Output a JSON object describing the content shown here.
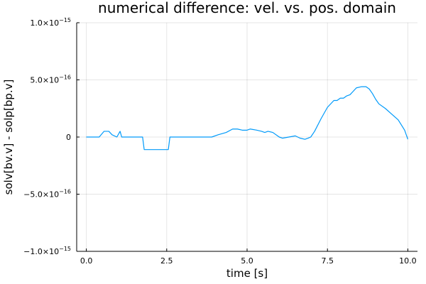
{
  "chart_data": {
    "type": "line",
    "title": "numerical difference: vel. vs. pos. domain",
    "xlabel": "time [s]",
    "ylabel": "solv[bv.v] - solp[bp.v]",
    "xlim": [
      -0.3,
      10.3
    ],
    "ylim": [
      -1e-15,
      1e-15
    ],
    "xticks": [
      0.0,
      2.5,
      5.0,
      7.5,
      10.0
    ],
    "xtick_labels": [
      "0.0",
      "2.5",
      "5.0",
      "7.5",
      "10.0"
    ],
    "yticks": [
      -1e-15,
      -5e-16,
      0,
      5e-16,
      1e-15
    ],
    "ytick_labels": [
      {
        "mantissa": "−1.0×10",
        "exp": "−15"
      },
      {
        "mantissa": "−5.0×10",
        "exp": "−16"
      },
      {
        "mantissa": "0",
        "exp": ""
      },
      {
        "mantissa": "5.0×10",
        "exp": "−16"
      },
      {
        "mantissa": "1.0×10",
        "exp": "−15"
      }
    ],
    "grid": true,
    "legend": "none",
    "series": [
      {
        "color": "#009AFA",
        "x": [
          0.0,
          0.4,
          0.55,
          0.7,
          0.8,
          0.95,
          1.05,
          1.1,
          1.2,
          1.75,
          1.8,
          2.55,
          2.6,
          3.9,
          4.1,
          4.35,
          4.55,
          4.7,
          4.85,
          5.0,
          5.1,
          5.3,
          5.45,
          5.55,
          5.65,
          5.8,
          6.0,
          6.1,
          6.3,
          6.5,
          6.65,
          6.8,
          6.9,
          6.98,
          7.1,
          7.3,
          7.5,
          7.7,
          7.8,
          7.9,
          8.0,
          8.1,
          8.2,
          8.3,
          8.4,
          8.55,
          8.7,
          8.8,
          8.9,
          9.0,
          9.1,
          9.3,
          9.5,
          9.7,
          9.9,
          10.0
        ],
        "y": [
          0,
          0,
          5e-17,
          5e-17,
          2e-17,
          0,
          5e-17,
          0,
          0,
          0,
          -1.1e-16,
          -1.1e-16,
          0,
          0,
          2e-17,
          4e-17,
          7e-17,
          7e-17,
          6e-17,
          6e-17,
          7e-17,
          6e-17,
          5e-17,
          4e-17,
          5e-17,
          4e-17,
          0,
          -1e-17,
          0,
          1e-17,
          -1e-17,
          -2e-17,
          -1e-17,
          0,
          5e-17,
          1.6e-16,
          2.6e-16,
          3.2e-16,
          3.2e-16,
          3.4e-16,
          3.4e-16,
          3.6e-16,
          3.7e-16,
          4e-16,
          4.3e-16,
          4.4e-16,
          4.4e-16,
          4.2e-16,
          3.8e-16,
          3.3e-16,
          2.9e-16,
          2.5e-16,
          2e-16,
          1.5e-16,
          6e-17,
          -2e-17
        ]
      }
    ]
  }
}
